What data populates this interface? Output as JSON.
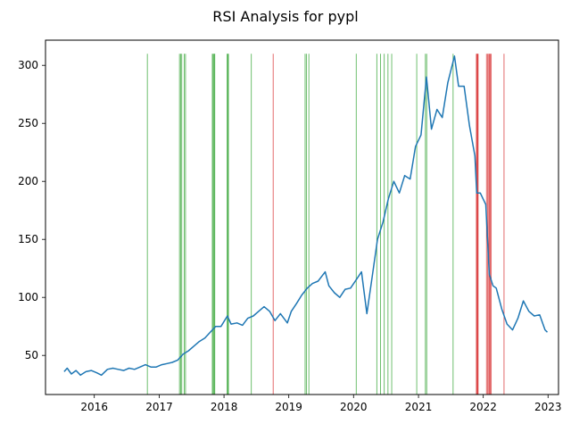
{
  "chart_data": {
    "type": "line",
    "title": "RSI Analysis for pypl",
    "xlabel": "",
    "ylabel": "",
    "x_range": [
      "2015-04-01",
      "2023-03-01"
    ],
    "ylim": [
      16.3,
      321.7
    ],
    "grid": false,
    "x_ticks": [
      "2016",
      "2017",
      "2018",
      "2019",
      "2020",
      "2021",
      "2022",
      "2023"
    ],
    "y_ticks": [
      50,
      100,
      150,
      200,
      250,
      300
    ],
    "series": [
      {
        "color": "#1f77b4",
        "points": [
          [
            "2015-07-15",
            36
          ],
          [
            "2015-08-01",
            39
          ],
          [
            "2015-08-25",
            34
          ],
          [
            "2015-09-20",
            37
          ],
          [
            "2015-10-15",
            33
          ],
          [
            "2015-11-15",
            36
          ],
          [
            "2015-12-15",
            37
          ],
          [
            "2016-01-15",
            35
          ],
          [
            "2016-02-10",
            33
          ],
          [
            "2016-03-15",
            38
          ],
          [
            "2016-04-15",
            39
          ],
          [
            "2016-05-15",
            38
          ],
          [
            "2016-06-15",
            37
          ],
          [
            "2016-07-15",
            39
          ],
          [
            "2016-08-15",
            38
          ],
          [
            "2016-09-15",
            40
          ],
          [
            "2016-10-15",
            42
          ],
          [
            "2016-11-15",
            40
          ],
          [
            "2016-12-15",
            40
          ],
          [
            "2017-01-15",
            42
          ],
          [
            "2017-02-15",
            43
          ],
          [
            "2017-03-15",
            44
          ],
          [
            "2017-04-15",
            46
          ],
          [
            "2017-05-15",
            51
          ],
          [
            "2017-06-15",
            54
          ],
          [
            "2017-07-15",
            58
          ],
          [
            "2017-08-15",
            62
          ],
          [
            "2017-09-15",
            65
          ],
          [
            "2017-10-15",
            70
          ],
          [
            "2017-11-15",
            75
          ],
          [
            "2017-12-15",
            75
          ],
          [
            "2018-01-20",
            84
          ],
          [
            "2018-02-10",
            77
          ],
          [
            "2018-03-15",
            78
          ],
          [
            "2018-04-15",
            76
          ],
          [
            "2018-05-15",
            82
          ],
          [
            "2018-06-15",
            84
          ],
          [
            "2018-07-15",
            88
          ],
          [
            "2018-08-15",
            92
          ],
          [
            "2018-09-15",
            88
          ],
          [
            "2018-10-15",
            80
          ],
          [
            "2018-11-15",
            86
          ],
          [
            "2018-12-24",
            78
          ],
          [
            "2019-01-15",
            88
          ],
          [
            "2019-02-15",
            95
          ],
          [
            "2019-03-15",
            102
          ],
          [
            "2019-04-15",
            108
          ],
          [
            "2019-05-15",
            112
          ],
          [
            "2019-06-15",
            114
          ],
          [
            "2019-07-25",
            122
          ],
          [
            "2019-08-15",
            110
          ],
          [
            "2019-09-15",
            104
          ],
          [
            "2019-10-15",
            100
          ],
          [
            "2019-11-15",
            107
          ],
          [
            "2019-12-15",
            108
          ],
          [
            "2020-01-15",
            115
          ],
          [
            "2020-02-15",
            122
          ],
          [
            "2020-03-16",
            86
          ],
          [
            "2020-04-15",
            118
          ],
          [
            "2020-05-15",
            150
          ],
          [
            "2020-06-15",
            165
          ],
          [
            "2020-07-15",
            185
          ],
          [
            "2020-08-15",
            200
          ],
          [
            "2020-09-15",
            190
          ],
          [
            "2020-10-15",
            205
          ],
          [
            "2020-11-15",
            202
          ],
          [
            "2020-12-15",
            230
          ],
          [
            "2021-01-15",
            240
          ],
          [
            "2021-02-15",
            290
          ],
          [
            "2021-03-15",
            245
          ],
          [
            "2021-04-15",
            262
          ],
          [
            "2021-05-15",
            255
          ],
          [
            "2021-06-15",
            285
          ],
          [
            "2021-07-23",
            308
          ],
          [
            "2021-08-15",
            282
          ],
          [
            "2021-09-15",
            282
          ],
          [
            "2021-10-15",
            248
          ],
          [
            "2021-11-15",
            222
          ],
          [
            "2021-11-25",
            190
          ],
          [
            "2021-12-15",
            190
          ],
          [
            "2022-01-15",
            180
          ],
          [
            "2022-02-04",
            120
          ],
          [
            "2022-02-25",
            110
          ],
          [
            "2022-03-15",
            108
          ],
          [
            "2022-04-15",
            90
          ],
          [
            "2022-05-15",
            77
          ],
          [
            "2022-06-15",
            72
          ],
          [
            "2022-07-15",
            82
          ],
          [
            "2022-08-15",
            97
          ],
          [
            "2022-09-15",
            88
          ],
          [
            "2022-10-15",
            84
          ],
          [
            "2022-11-15",
            85
          ],
          [
            "2022-12-15",
            72
          ],
          [
            "2022-12-28",
            70
          ]
        ]
      }
    ],
    "signal_lines": {
      "green": {
        "color": "#2ca02c",
        "dates": [
          "2016-10-26",
          "2017-04-25",
          "2017-05-02",
          "2017-05-08",
          "2017-05-22",
          "2017-05-29",
          "2017-10-27",
          "2017-11-01",
          "2017-11-06",
          "2017-11-10",
          "2018-01-18",
          "2018-01-23",
          "2018-01-26",
          "2018-06-04",
          "2019-04-03",
          "2019-04-10",
          "2019-04-24",
          "2020-01-16",
          "2020-05-11",
          "2020-06-01",
          "2020-06-22",
          "2020-07-13",
          "2020-08-03",
          "2020-12-22",
          "2021-02-09",
          "2021-02-16",
          "2021-07-15"
        ]
      },
      "red": {
        "color": "#d62728",
        "dates": [
          "2018-10-05",
          "2021-11-23",
          "2021-11-26",
          "2021-11-30",
          "2021-12-03",
          "2022-01-19",
          "2022-01-26",
          "2022-02-01",
          "2022-02-04",
          "2022-02-09",
          "2022-02-15",
          "2022-04-28"
        ]
      }
    }
  }
}
